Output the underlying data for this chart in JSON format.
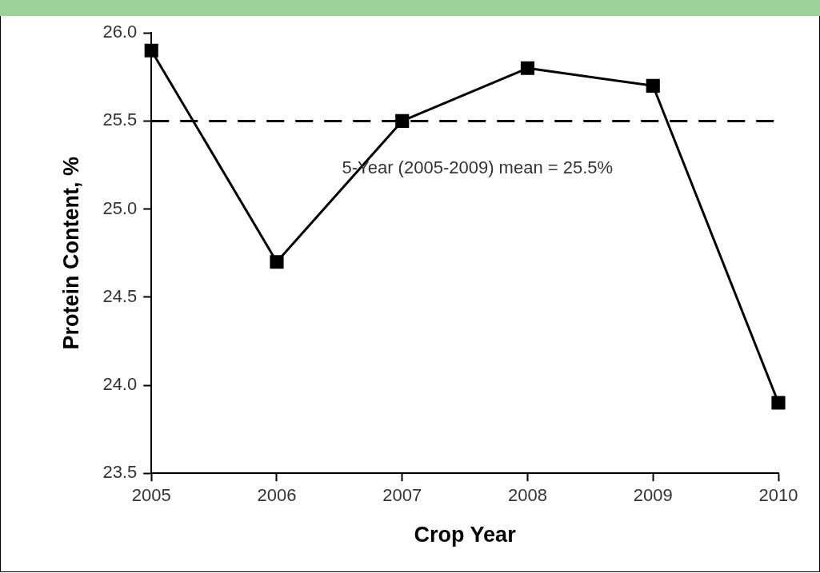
{
  "chart_data": {
    "type": "line",
    "xlabel": "Crop Year",
    "ylabel": "Protein Content, %",
    "categories": [
      "2005",
      "2006",
      "2007",
      "2008",
      "2009",
      "2010"
    ],
    "series": [
      {
        "color": "#000000",
        "values": [
          25.9,
          24.7,
          25.5,
          25.8,
          25.7,
          23.9
        ]
      }
    ],
    "ylim": [
      23.5,
      26.0
    ],
    "yticks": [
      {
        "value": 23.5,
        "label": "23.5"
      },
      {
        "value": 24,
        "label": "24.0"
      },
      {
        "value": 24.5,
        "label": "24.5"
      },
      {
        "value": 25,
        "label": "25.0"
      },
      {
        "value": 25.5,
        "label": "25.5"
      },
      {
        "value": 26,
        "label": "26.0"
      }
    ],
    "ref_lines": [
      {
        "axis": "y",
        "value": 25.5,
        "label": "5-Year (2005-2009) mean = 25.5%",
        "color": "#000000",
        "line_style": "dashed"
      }
    ],
    "marker": "square",
    "line_style": "solid",
    "grid": false,
    "legend": false
  }
}
